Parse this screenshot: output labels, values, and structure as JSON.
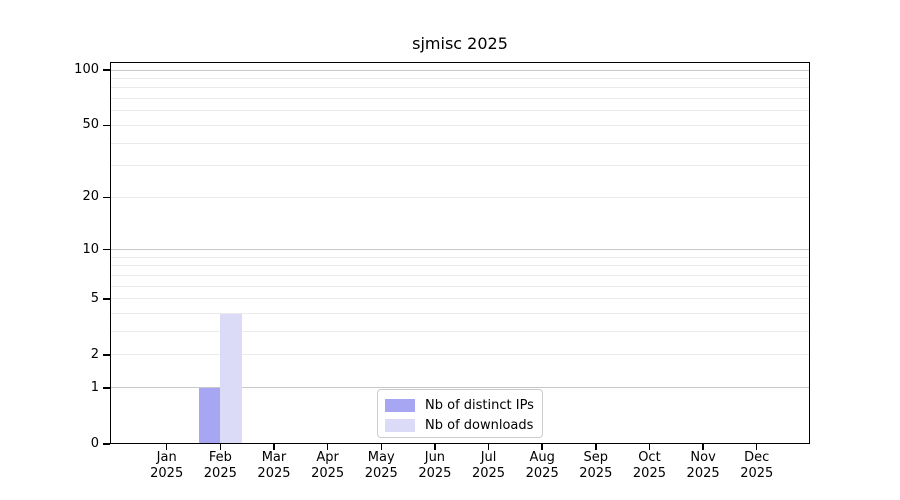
{
  "chart_data": {
    "type": "bar",
    "title": "sjmisc 2025",
    "months": [
      "Jan",
      "Feb",
      "Mar",
      "Apr",
      "May",
      "Jun",
      "Jul",
      "Aug",
      "Sep",
      "Oct",
      "Nov",
      "Dec"
    ],
    "year": "2025",
    "series": [
      {
        "name": "Nb of distinct IPs",
        "color": "#a6a6f2",
        "values": [
          0,
          1,
          0,
          0,
          0,
          0,
          0,
          0,
          0,
          0,
          0,
          0
        ]
      },
      {
        "name": "Nb of downloads",
        "color": "#dbdbf8",
        "values": [
          0,
          4,
          0,
          0,
          0,
          0,
          0,
          0,
          0,
          0,
          0,
          0
        ]
      }
    ],
    "y_axis": {
      "scale": "log1p",
      "tick_labels": [
        0,
        1,
        2,
        5,
        10,
        20,
        50,
        100
      ],
      "major_gridlines": [
        1,
        10,
        100
      ],
      "minor_gridlines": [
        2,
        3,
        4,
        5,
        6,
        7,
        8,
        9,
        20,
        30,
        40,
        50,
        60,
        70,
        80,
        90
      ],
      "min": 0,
      "max": 100
    },
    "legend": {
      "position": "bottom-center"
    },
    "colors": {
      "axis": "#000000",
      "major_grid": "#c8c8c8",
      "minor_grid": "#ebebeb",
      "legend_border": "#cccccc",
      "background": "#ffffff"
    }
  }
}
